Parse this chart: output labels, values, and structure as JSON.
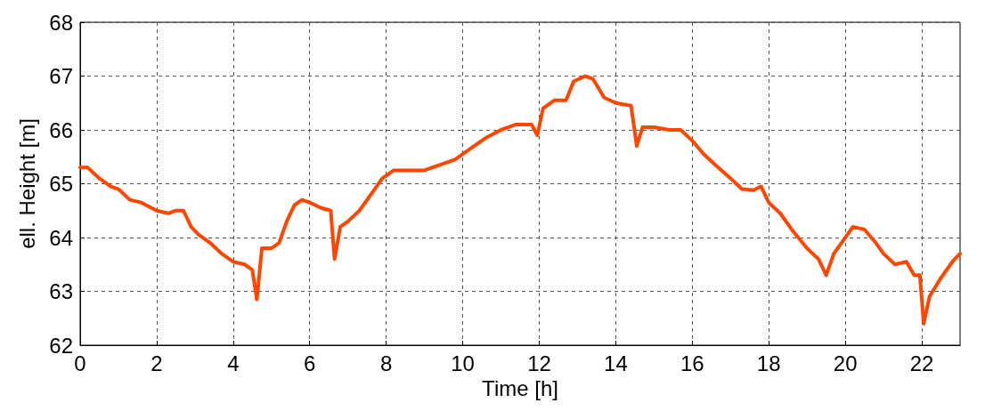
{
  "chart_data": {
    "type": "line",
    "xlabel": "Time [h]",
    "ylabel": "ell. Height [m]",
    "xlim": [
      0,
      23
    ],
    "xticks": [
      0,
      2,
      4,
      6,
      8,
      10,
      12,
      14,
      16,
      18,
      20,
      22
    ],
    "ylim": [
      62,
      68
    ],
    "yticks": [
      62,
      63,
      64,
      65,
      66,
      67,
      68
    ],
    "grid": true,
    "marker": "none",
    "series": [
      {
        "color": "#ff4500",
        "line_style": "solid",
        "x": [
          0,
          0.2,
          0.5,
          0.8,
          1.0,
          1.3,
          1.6,
          2.0,
          2.3,
          2.5,
          2.7,
          2.9,
          3.1,
          3.4,
          3.7,
          4.0,
          4.3,
          4.5,
          4.62,
          4.75,
          5.0,
          5.2,
          5.4,
          5.6,
          5.8,
          6.0,
          6.3,
          6.55,
          6.65,
          6.8,
          7.0,
          7.3,
          7.6,
          7.9,
          8.2,
          8.6,
          9.0,
          9.4,
          9.8,
          10.2,
          10.6,
          11.0,
          11.4,
          11.8,
          11.95,
          12.1,
          12.4,
          12.7,
          12.9,
          13.2,
          13.4,
          13.7,
          14.0,
          14.4,
          14.55,
          14.7,
          15.0,
          15.4,
          15.7,
          16.0,
          16.3,
          16.6,
          17.0,
          17.3,
          17.6,
          17.8,
          18.0,
          18.3,
          18.6,
          19.0,
          19.3,
          19.5,
          19.7,
          19.9,
          20.2,
          20.5,
          20.8,
          21.0,
          21.3,
          21.6,
          21.8,
          21.95,
          22.05,
          22.2,
          22.5,
          22.8,
          23.0
        ],
        "values": [
          65.3,
          65.3,
          65.1,
          64.95,
          64.9,
          64.7,
          64.65,
          64.5,
          64.45,
          64.5,
          64.5,
          64.2,
          64.05,
          63.9,
          63.7,
          63.55,
          63.5,
          63.4,
          62.85,
          63.8,
          63.8,
          63.9,
          64.3,
          64.6,
          64.7,
          64.65,
          64.55,
          64.5,
          63.6,
          64.2,
          64.3,
          64.5,
          64.8,
          65.1,
          65.25,
          65.25,
          65.25,
          65.35,
          65.45,
          65.65,
          65.85,
          66.0,
          66.1,
          66.1,
          65.9,
          66.4,
          66.55,
          66.55,
          66.9,
          67.0,
          66.95,
          66.6,
          66.5,
          66.45,
          65.7,
          66.05,
          66.05,
          66.0,
          66.0,
          65.8,
          65.55,
          65.35,
          65.1,
          64.9,
          64.88,
          64.95,
          64.65,
          64.45,
          64.15,
          63.8,
          63.6,
          63.3,
          63.7,
          63.9,
          64.2,
          64.15,
          63.9,
          63.7,
          63.5,
          63.55,
          63.3,
          63.3,
          62.4,
          62.9,
          63.25,
          63.55,
          63.7
        ]
      }
    ]
  }
}
